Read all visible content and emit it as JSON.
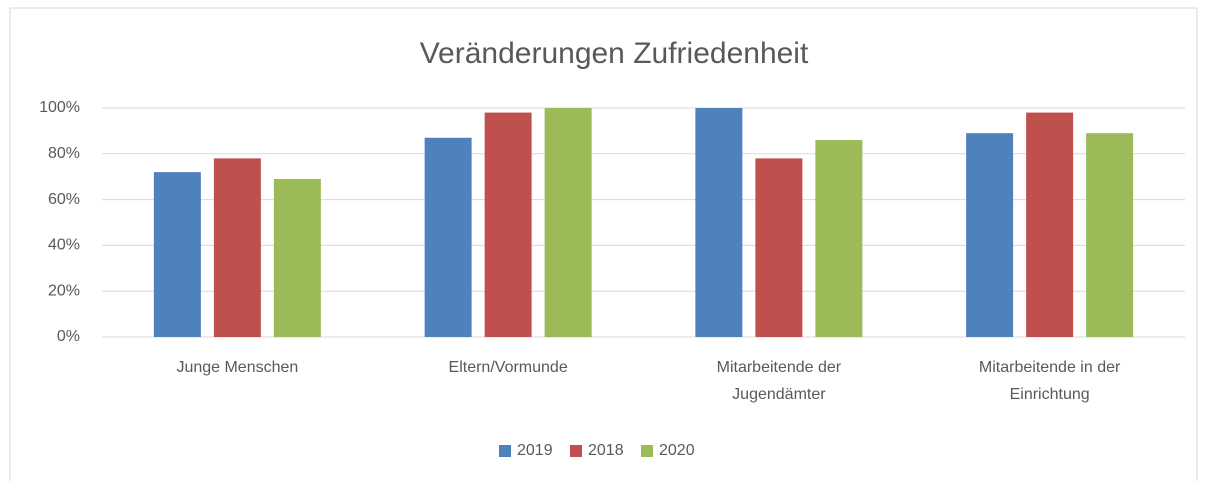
{
  "chart_data": {
    "type": "bar",
    "title": "Veränderungen Zufriedenheit",
    "categories": [
      "Junge Menschen",
      "Eltern/Vormunde",
      "Mitarbeitende der Jugendämter",
      "Mitarbeitende in der Einrichtung"
    ],
    "series": [
      {
        "name": "2019",
        "color": "#4f81bd",
        "values": [
          72,
          87,
          100,
          89
        ]
      },
      {
        "name": "2018",
        "color": "#c0504d",
        "values": [
          78,
          98,
          78,
          98
        ]
      },
      {
        "name": "2020",
        "color": "#9bbb59",
        "values": [
          69,
          100,
          86,
          89
        ]
      }
    ],
    "ylim": [
      0,
      100
    ],
    "yticks": [
      {
        "value": 0,
        "label": "0%"
      },
      {
        "value": 20,
        "label": "20%"
      },
      {
        "value": 40,
        "label": "40%"
      },
      {
        "value": 60,
        "label": "60%"
      },
      {
        "value": 80,
        "label": "80%"
      },
      {
        "value": 100,
        "label": "100%"
      }
    ],
    "grid": true,
    "legend": "bottom"
  }
}
